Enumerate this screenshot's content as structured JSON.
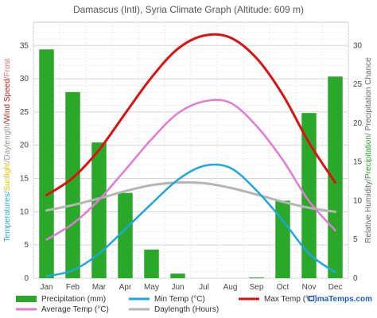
{
  "chart_data": {
    "type": "bar+line",
    "title": "Damascus (Intl), Syria Climate Graph (Altitude: 609 m)",
    "categories": [
      "Jan",
      "Feb",
      "Mar",
      "Apr",
      "May",
      "Jun",
      "Jul",
      "Aug",
      "Sep",
      "Oct",
      "Nov",
      "Dec"
    ],
    "y_left_ticks": [
      0,
      5,
      10,
      15,
      20,
      25,
      30,
      35
    ],
    "y_right_ticks": [
      0,
      5,
      10,
      15,
      20,
      25,
      30
    ],
    "y_left_label_parts": [
      {
        "text": "Temp",
        "color": "#2aa8e0"
      },
      {
        "text": "eratures/",
        "color": "#2aa8e0"
      },
      {
        "text": "Sunlight",
        "color": "#e8c400"
      },
      {
        "text": "/Daylength",
        "color": "#999999"
      },
      {
        "text": "/Wind Speed",
        "color": "#cc2222"
      },
      {
        "text": "/Frost",
        "color": "#e07070"
      }
    ],
    "y_right_label_parts": [
      {
        "text": "Relative Humidity/",
        "color": "#666666"
      },
      {
        "text": "Precipitation",
        "color": "#2aa82a"
      },
      {
        "text": "/ Precipitation Chance",
        "color": "#666666"
      }
    ],
    "series": [
      {
        "name": "Precipitation (mm)",
        "kind": "bar",
        "axis": "right",
        "color": "#2aa82a",
        "values": [
          29.5,
          24,
          17.5,
          11,
          3.7,
          0.6,
          0,
          0,
          0.1,
          10,
          21.3,
          26
        ]
      },
      {
        "name": "Min Temp (°C)",
        "kind": "line",
        "axis": "left",
        "color": "#1fa6e0",
        "values": [
          0.3,
          1.2,
          3.7,
          7.4,
          11.2,
          14.8,
          16.9,
          16.6,
          13.2,
          8.7,
          3.7,
          0.9
        ]
      },
      {
        "name": "Max Temp (°C)",
        "kind": "line",
        "axis": "left",
        "color": "#dd1111",
        "values": [
          12.5,
          15.1,
          19.3,
          24.8,
          30.2,
          34.5,
          36.5,
          36.2,
          33.1,
          27.6,
          20.4,
          14.4
        ]
      },
      {
        "name": "Average Temp (°C)",
        "kind": "line",
        "axis": "left",
        "color": "#e27ad6",
        "values": [
          5.8,
          8.2,
          11.8,
          16.3,
          20.9,
          24.8,
          26.6,
          26.4,
          22.9,
          17.8,
          11.6,
          7.2
        ]
      },
      {
        "name": "Daylength (Hours)",
        "kind": "line",
        "axis": "left",
        "color": "#b5b5b5",
        "values": [
          10.2,
          11.0,
          12.0,
          13.1,
          14.0,
          14.4,
          14.3,
          13.6,
          12.6,
          11.5,
          10.6,
          10.0
        ]
      }
    ],
    "legend_placement": "bottom",
    "grid": true,
    "brand": "ClimaTemps.com",
    "brand_color": "#1a5fc8"
  }
}
